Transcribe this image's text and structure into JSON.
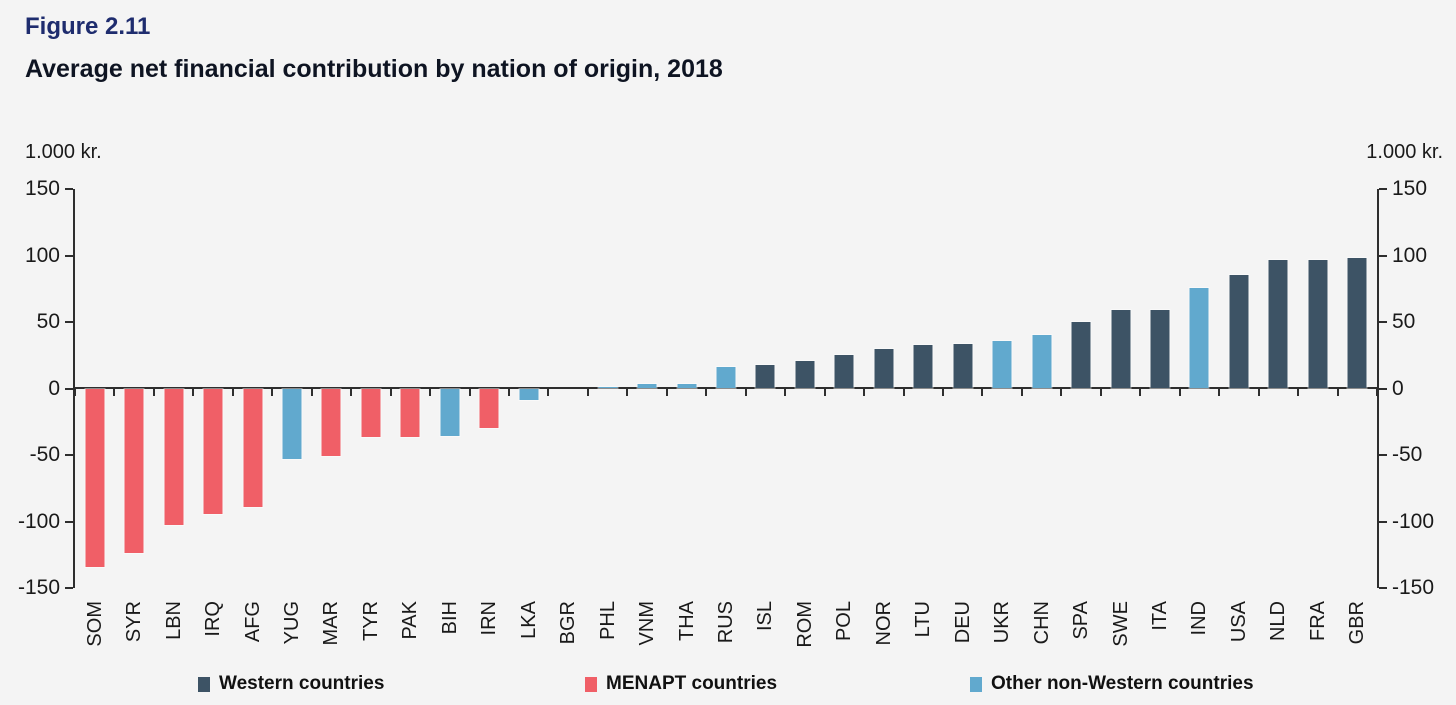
{
  "figure": {
    "label": "Figure 2.11",
    "title": "Average net financial contribution by nation of origin, 2018"
  },
  "axis": {
    "unit_left": "1.000 kr.",
    "unit_right": "1.000 kr."
  },
  "legend": [
    {
      "key": "western",
      "label": "Western countries",
      "color": "#3d5365"
    },
    {
      "key": "menapt",
      "label": "MENAPT countries",
      "color": "#f05f67"
    },
    {
      "key": "other",
      "label": "Other non-Western countries",
      "color": "#61a9ce"
    }
  ],
  "chart_data": {
    "type": "bar",
    "title": "Average net financial contribution by nation of origin, 2018",
    "xlabel": "",
    "ylabel": "1.000 kr.",
    "ylim": [
      -150,
      150
    ],
    "yticks": [
      150,
      100,
      50,
      0,
      -50,
      -100,
      -150
    ],
    "grid": false,
    "legend_position": "bottom",
    "categories": [
      "SOM",
      "SYR",
      "LBN",
      "IRQ",
      "AFG",
      "YUG",
      "MAR",
      "TYR",
      "PAK",
      "BIH",
      "IRN",
      "LKA",
      "BGR",
      "PHL",
      "VNM",
      "THA",
      "RUS",
      "ISL",
      "ROM",
      "POL",
      "NOR",
      "LTU",
      "DEU",
      "UKR",
      "CHN",
      "SPA",
      "SWE",
      "ITA",
      "IND",
      "USA",
      "NLD",
      "FRA",
      "GBR"
    ],
    "values": [
      -134,
      -123,
      -102,
      -94,
      -89,
      -53,
      -50,
      -36,
      -36,
      -35,
      -29,
      -8,
      0,
      1,
      3,
      3,
      16,
      17,
      20,
      25,
      29,
      32,
      33,
      35,
      40,
      50,
      59,
      59,
      75,
      85,
      96,
      96,
      98
    ],
    "groups": [
      "menapt",
      "menapt",
      "menapt",
      "menapt",
      "menapt",
      "other",
      "menapt",
      "menapt",
      "menapt",
      "other",
      "menapt",
      "other",
      "western",
      "other",
      "other",
      "other",
      "other",
      "western",
      "western",
      "western",
      "western",
      "western",
      "western",
      "other",
      "other",
      "western",
      "western",
      "western",
      "other",
      "western",
      "western",
      "western",
      "western"
    ],
    "group_colors": {
      "western": "#3d5365",
      "menapt": "#f05f67",
      "other": "#61a9ce"
    }
  }
}
